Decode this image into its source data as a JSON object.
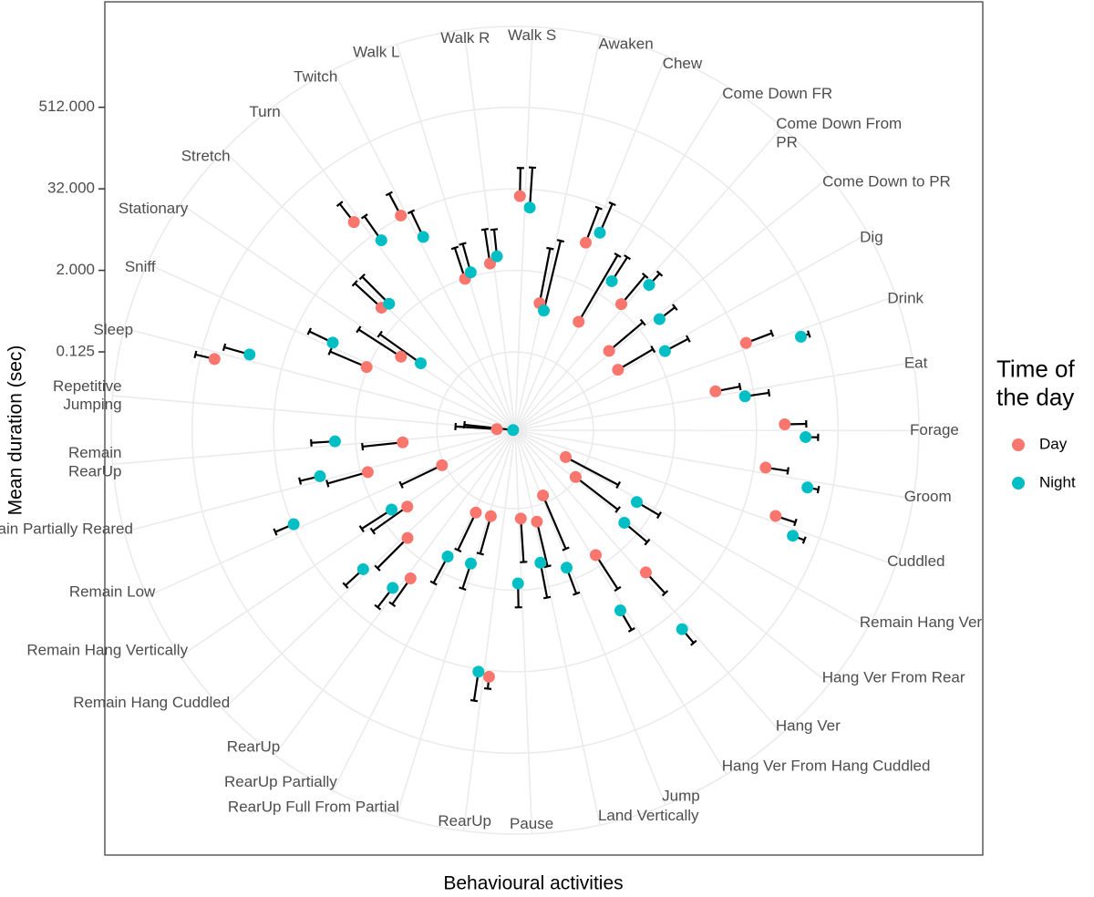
{
  "chart_data": {
    "type": "polar-dot-errorbar",
    "x_label": "Behavioural activities",
    "y_label": "Mean duration (sec)",
    "yscale": "log",
    "ylim": [
      0.0087,
      8000
    ],
    "yticks": [
      0.125,
      {
        "value": 2,
        "label": "2.000"
      },
      {
        "value": 32,
        "label": "32.000"
      },
      {
        "value": 512,
        "label": "512.000"
      }
    ],
    "grid": true,
    "legend_title": "Time of\nthe day",
    "legend_position": "right",
    "categories": [
      "Awaken",
      "Chew",
      "Come Down FR",
      "Come Down From\nPR",
      "Come Down to PR",
      "Dig",
      "Drink",
      "Eat",
      "Forage",
      "Groom",
      "Cuddled",
      "Remain Hang Ver",
      "Hang Ver From Rear",
      "Hang Ver",
      "Hang Ver From Hang Cuddled",
      "Jump",
      "Land Vertically",
      "Pause",
      "RearUp",
      "RearUp Full From Partial",
      "RearUp Partially",
      "RearUp",
      "Remain Hang Cuddled",
      "Remain Hang Vertically",
      "Remain Low",
      "Remain Partially Reared",
      "Remain\nRearUp",
      "Repetitive\nJumping",
      "Sleep",
      "Sniff",
      "Stationary",
      "Stretch",
      "Turn",
      "Twitch",
      "Walk L",
      "Walk R",
      "Walk S"
    ],
    "series": [
      {
        "name": "Day",
        "color": "#F8766D",
        "values": [
          0.708,
          7.94,
          0.626,
          2.37,
          0.57,
          0.504,
          38.5,
          8.99,
          83.6,
          47.9,
          97.6,
          0.061,
          0.117,
          6.19,
          1.36,
          0.097,
          0.212,
          0.176,
          39.8,
          0.181,
          0.193,
          4.14,
          1.54,
          0.777,
          0.137,
          1.59,
          0.406,
          0.0162,
          317,
          2.1,
          0.88,
          4.14,
          67.3,
          34,
          1.97,
          2.69,
          25
        ],
        "errors": [
          4,
          20,
          8,
          6,
          2,
          1.5,
          60,
          12,
          90,
          55,
          100,
          0.4,
          0.6,
          10,
          4,
          0.6,
          0.8,
          0.6,
          20,
          0.5,
          0.6,
          8,
          5,
          2.5,
          0.5,
          5,
          1.2,
          0.05,
          300,
          6,
          4,
          10,
          80,
          45,
          4,
          6,
          40
        ]
      },
      {
        "name": "Night",
        "color": "#00BFC4",
        "values": [
          0.57,
          13,
          3.66,
          7.23,
          4.27,
          2.77,
          240,
          23.5,
          170,
          218,
          212,
          1.06,
          1.13,
          59.5,
          10.5,
          1.28,
          0.853,
          1.59,
          35.1,
          1.03,
          1.13,
          7.7,
          9.56,
          1.28,
          31,
          7.94,
          4.02,
          0.0093,
          104,
          8.45,
          0.445,
          3.77,
          23.5,
          12.6,
          2.3,
          3.33,
          17.2
        ],
        "errors": [
          6,
          25,
          6,
          5,
          4,
          4,
          80,
          30,
          90,
          100,
          110,
          1.5,
          2,
          50,
          12,
          2,
          2,
          2,
          60,
          1.5,
          2,
          10,
          12,
          3,
          30,
          8,
          5,
          0.04,
          150,
          12,
          2,
          10,
          40,
          20,
          4,
          5,
          50
        ]
      }
    ]
  }
}
